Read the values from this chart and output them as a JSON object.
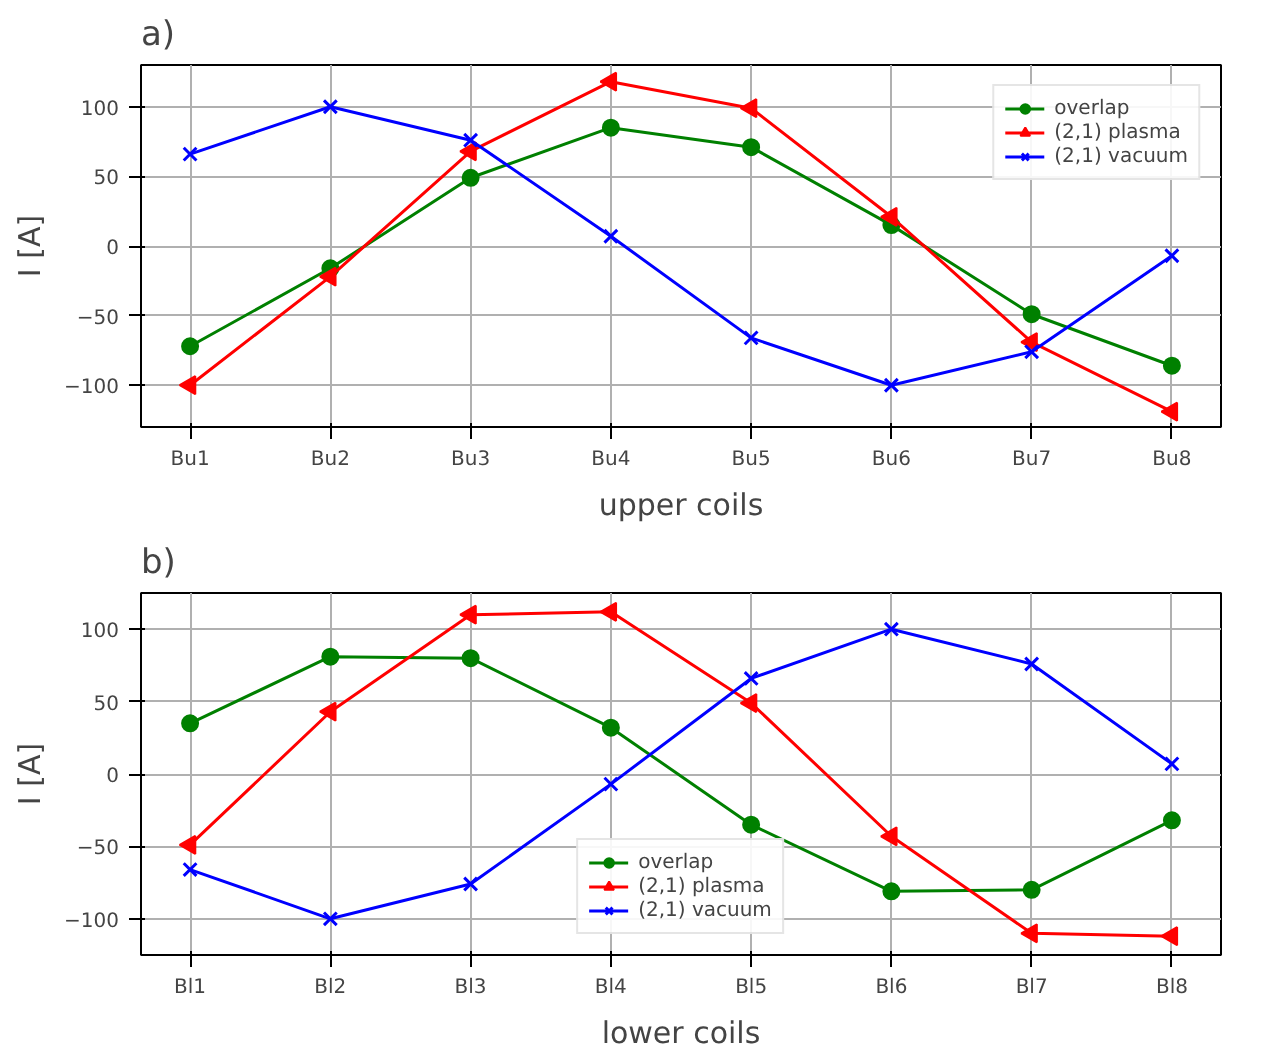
{
  "chart_data": [
    {
      "type": "line",
      "title": "a)",
      "xlabel": "upper coils",
      "ylabel": "I [A]",
      "categories": [
        "Bu1",
        "Bu2",
        "Bu3",
        "Bu4",
        "Bu5",
        "Bu6",
        "Bu7",
        "Bu8"
      ],
      "ylim": [
        -130,
        130
      ],
      "yticks": [
        -100,
        -50,
        0,
        50,
        100
      ],
      "grid": true,
      "legend": "top right",
      "series": [
        {
          "name": "overlap",
          "color": "#008000",
          "marker": "circle",
          "values": [
            -72,
            -16,
            49,
            85,
            71,
            15,
            -49,
            -86
          ]
        },
        {
          "name": "(2,1) plasma",
          "color": "#ff0000",
          "marker": "triangle_left",
          "values": [
            -100,
            -22,
            68,
            118,
            99,
            21,
            -69,
            -119
          ]
        },
        {
          "name": "(2,1) vacuum",
          "color": "#0000ff",
          "marker": "x",
          "values": [
            66,
            100,
            76,
            7,
            -66,
            -100,
            -76,
            -7
          ]
        }
      ]
    },
    {
      "type": "line",
      "title": "b)",
      "xlabel": "lower coils",
      "ylabel": "I [A]",
      "categories": [
        "Bl1",
        "Bl2",
        "Bl3",
        "Bl4",
        "Bl5",
        "Bl6",
        "Bl7",
        "Bl8"
      ],
      "ylim": [
        -125,
        125
      ],
      "yticks": [
        -100,
        -50,
        0,
        50,
        100
      ],
      "grid": true,
      "legend": "bottom",
      "series": [
        {
          "name": "overlap",
          "color": "#008000",
          "marker": "circle",
          "values": [
            35,
            81,
            80,
            32,
            -35,
            -81,
            -80,
            -32
          ]
        },
        {
          "name": "(2,1) plasma",
          "color": "#ff0000",
          "marker": "triangle_left",
          "values": [
            -49,
            43,
            110,
            112,
            49,
            -43,
            -110,
            -112
          ]
        },
        {
          "name": "(2,1) vacuum",
          "color": "#0000ff",
          "marker": "x",
          "values": [
            -66,
            -100,
            -76,
            -7,
            66,
            100,
            76,
            7
          ]
        }
      ]
    }
  ]
}
